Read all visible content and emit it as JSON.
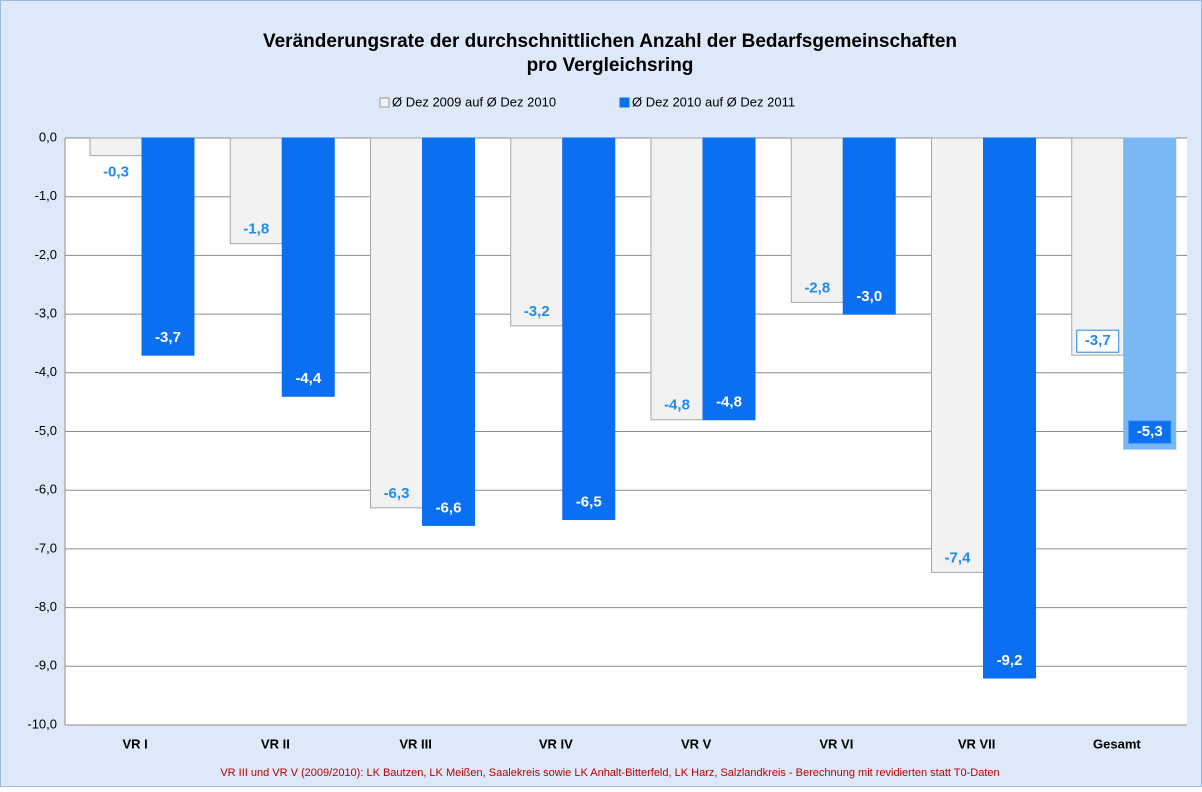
{
  "chart_data": {
    "type": "bar",
    "title": "Veränderungsrate der durchschnittlichen Anzahl der Bedarfsgemeinschaften",
    "subtitle": "pro Vergleichsring",
    "categories": [
      "VR I",
      "VR II",
      "VR III",
      "VR IV",
      "VR V",
      "VR VI",
      "VR VII",
      "Gesamt"
    ],
    "series": [
      {
        "name": "Ø Dez 2009  auf Ø Dez 2010",
        "color": "#f2f2f2",
        "colors": [
          "#f2f2f2",
          "#f2f2f2",
          "#f2f2f2",
          "#f2f2f2",
          "#f2f2f2",
          "#f2f2f2",
          "#f2f2f2",
          "#f2f2f2"
        ],
        "values": [
          -0.3,
          -1.8,
          -6.3,
          -3.2,
          -4.8,
          -2.8,
          -7.4,
          -3.7
        ],
        "value_labels": [
          "-0,3",
          "-1,8",
          "-6,3",
          "-3,2",
          "-4,8",
          "-2,8",
          "-7,4",
          "-3,7"
        ]
      },
      {
        "name": "Ø Dez 2010  auf Ø Dez 2011",
        "color": "#0a6ff0",
        "colors": [
          "#0a6ff0",
          "#0a6ff0",
          "#0a6ff0",
          "#0a6ff0",
          "#0a6ff0",
          "#0a6ff0",
          "#0a6ff0",
          "#7ab8f5"
        ],
        "values": [
          -3.7,
          -4.4,
          -6.6,
          -6.5,
          -4.8,
          -3.0,
          -9.2,
          -5.3
        ],
        "value_labels": [
          "-3,7",
          "-4,4",
          "-6,6",
          "-6,5",
          "-4,8",
          "-3,0",
          "-9,2",
          "-5,3"
        ]
      }
    ],
    "ylim": [
      -10,
      0
    ],
    "yticks": [
      {
        "value": 0,
        "label": "0,0"
      },
      {
        "value": -1,
        "label": "-1,0"
      },
      {
        "value": -2,
        "label": "-2,0"
      },
      {
        "value": -3,
        "label": "-3,0"
      },
      {
        "value": -4,
        "label": "-4,0"
      },
      {
        "value": -5,
        "label": "-5,0"
      },
      {
        "value": -6,
        "label": "-6,0"
      },
      {
        "value": -7,
        "label": "-7,0"
      },
      {
        "value": -8,
        "label": "-8,0"
      },
      {
        "value": -9,
        "label": "-9,0"
      },
      {
        "value": -10,
        "label": "-10,0"
      }
    ],
    "grid": true,
    "legend": "top",
    "footnote": "VR III und VR V (2009/2010): LK Bautzen, LK Meißen, Saalekreis sowie LK Anhalt-Bitterfeld, LK Harz, Salzlandkreis - Berechnung mit revidierten statt T0-Daten"
  }
}
